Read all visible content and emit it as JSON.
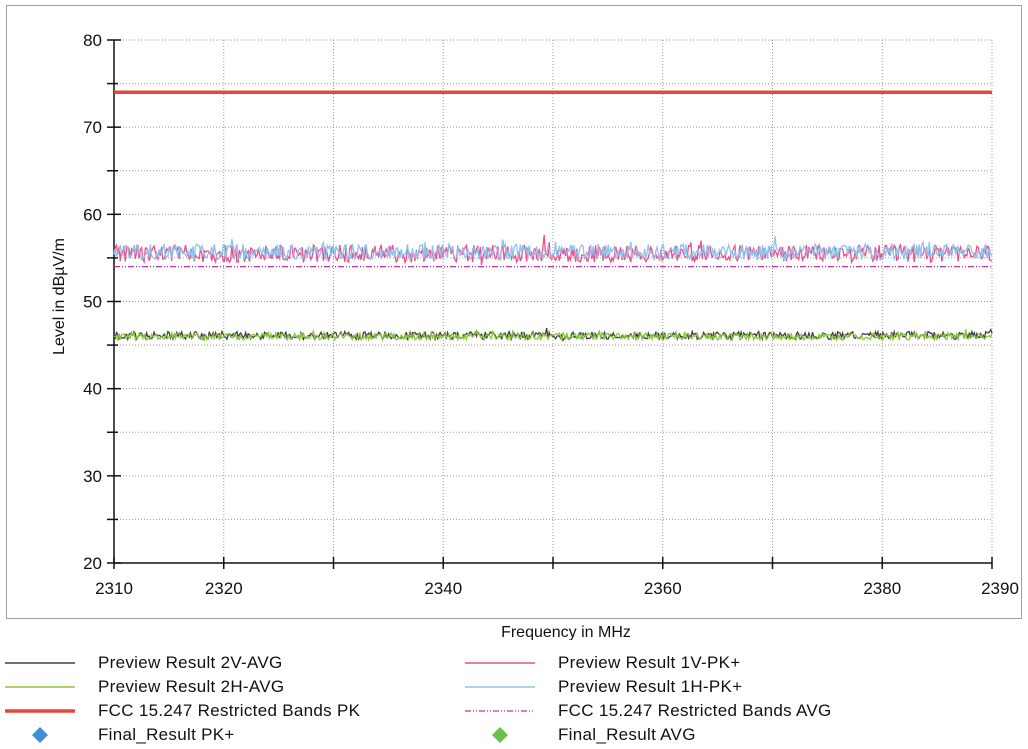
{
  "chart_data": {
    "type": "line",
    "xlabel": "Frequency in MHz",
    "ylabel": "Level in dBµV/m",
    "xlim": [
      2310,
      2390
    ],
    "ylim": [
      20,
      80
    ],
    "x_ticks": [
      2310,
      2320,
      2340,
      2360,
      2380,
      2390
    ],
    "x_minor_ticks": [
      2330,
      2350,
      2370
    ],
    "y_ticks": [
      20,
      30,
      40,
      50,
      60,
      70,
      80
    ],
    "grid": "dotted",
    "legend_position": "bottom",
    "series": [
      {
        "name": "Preview Result 2V-AVG",
        "color": "#404040",
        "style": "solid",
        "level": 46.1,
        "noise": 0.45
      },
      {
        "name": "Preview Result 1V-PK+",
        "color": "#ee4e8c",
        "style": "solid",
        "level": 55.5,
        "noise": 1.0
      },
      {
        "name": "Preview Result 2H-AVG",
        "color": "#8cc63f",
        "style": "solid",
        "level": 46.0,
        "noise": 0.4
      },
      {
        "name": "Preview Result 1H-PK+",
        "color": "#8fc3ea",
        "style": "solid",
        "level": 55.7,
        "noise": 0.9
      },
      {
        "name": "FCC 15.247 Restricted Bands PK",
        "color": "#e8453c",
        "style": "thick",
        "values": [
          74,
          74
        ],
        "x": [
          2310,
          2390
        ]
      },
      {
        "name": "FCC 15.247 Restricted Bands AVG",
        "color": "#c0359a",
        "style": "dashdot",
        "values": [
          54,
          54
        ],
        "x": [
          2310,
          2390
        ]
      },
      {
        "name": "Final_Result PK+",
        "color": "#3f8fd8",
        "style": "diamond",
        "values": []
      },
      {
        "name": "Final_Result AVG",
        "color": "#6cc04a",
        "style": "diamond",
        "values": []
      }
    ]
  },
  "legend": {
    "items": [
      {
        "label": "Preview Result 2V-AVG",
        "color": "#404040",
        "style": "solid"
      },
      {
        "label": "Preview Result 1V-PK+",
        "color": "#ee4e8c",
        "style": "solid"
      },
      {
        "label": "Preview Result 2H-AVG",
        "color": "#8cc63f",
        "style": "solid"
      },
      {
        "label": "Preview Result 1H-PK+",
        "color": "#8fc3ea",
        "style": "solid"
      },
      {
        "label": "FCC 15.247 Restricted Bands PK",
        "color": "#e8453c",
        "style": "thick"
      },
      {
        "label": "FCC 15.247 Restricted Bands AVG",
        "color": "#c0359a",
        "style": "dashdot"
      },
      {
        "label": "Final_Result PK+",
        "color": "#3f8fd8",
        "style": "diamond"
      },
      {
        "label": "Final_Result AVG",
        "color": "#6cc04a",
        "style": "diamond"
      }
    ]
  }
}
